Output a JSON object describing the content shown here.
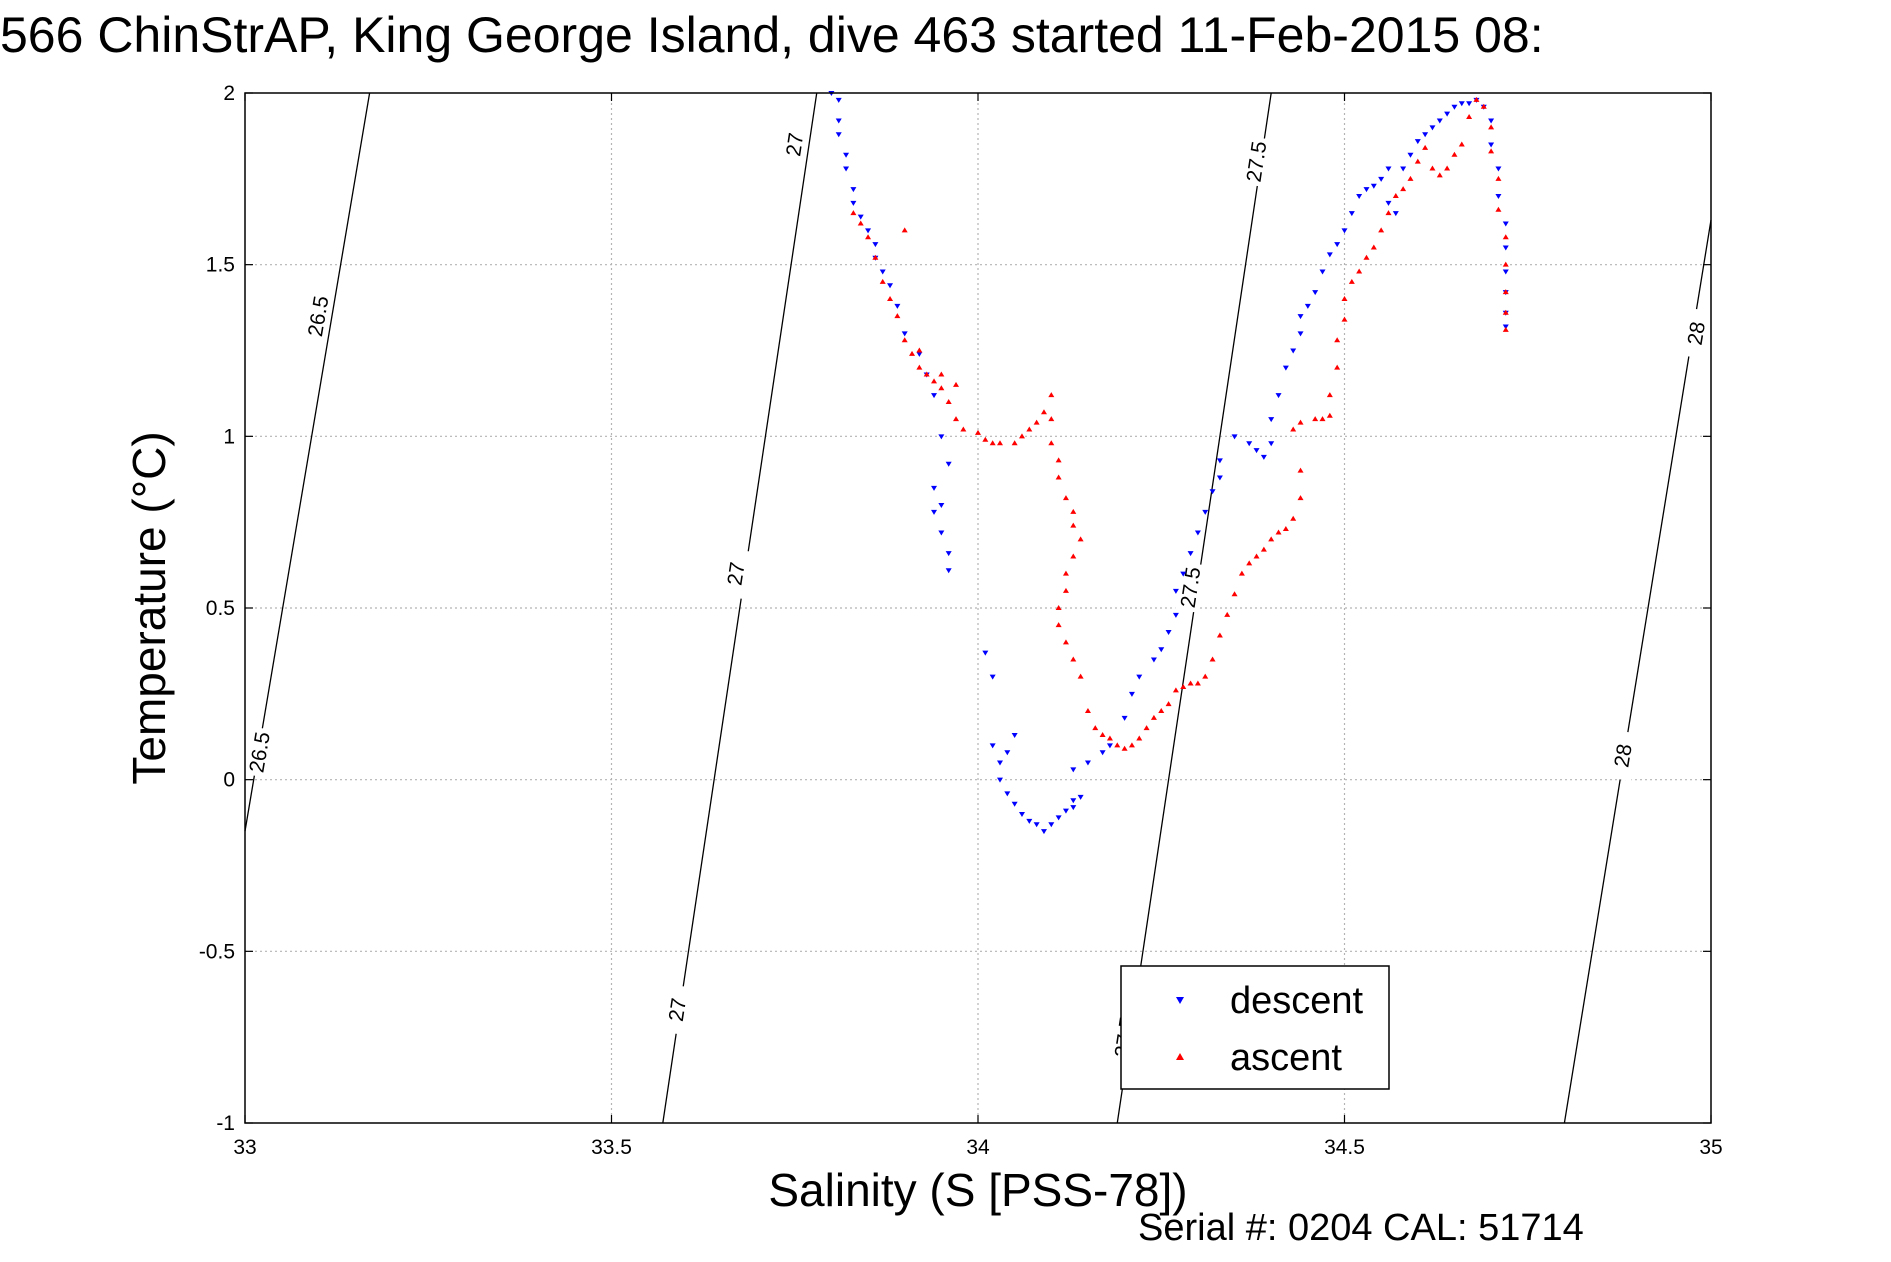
{
  "title": "566 ChinStrAP, King George Island, dive 463 started 11-Feb-2015 08:",
  "footer": {
    "serial": "Serial #: 0204  CAL: 51714"
  },
  "chart_data": {
    "type": "scatter",
    "title": "566 ChinStrAP, King George Island, dive 463 started 11-Feb-2015 08:",
    "xlabel": "Salinity (S [PSS-78])",
    "ylabel": "Temperature (°C)",
    "xlim": [
      33,
      35
    ],
    "ylim": [
      -1,
      2
    ],
    "xticks": [
      33,
      33.5,
      34,
      34.5,
      35
    ],
    "xtick_labels": [
      "33",
      "33.5",
      "34",
      "34.5",
      "35"
    ],
    "yticks": [
      -1,
      -0.5,
      0,
      0.5,
      1,
      1.5,
      2
    ],
    "ytick_labels": [
      "-1",
      "-0.5",
      "0",
      "0.5",
      "1",
      "1.5",
      "2"
    ],
    "grid": true,
    "legend_position": "bottom-right",
    "colors": {
      "descent": "#0000ff",
      "ascent": "#ff0000",
      "contour": "#000000",
      "grid": "#b4b4b4"
    },
    "density_contours": [
      {
        "label": "26.5",
        "line": [
          [
            33,
            -0.15
          ],
          [
            33.17,
            2.0
          ]
        ],
        "labels_at": [
          [
            33.1,
            1.35
          ],
          [
            33.02,
            0.08
          ]
        ]
      },
      {
        "label": "27",
        "line": [
          [
            33.57,
            -1.0
          ],
          [
            33.78,
            2.0
          ]
        ],
        "labels_at": [
          [
            33.75,
            1.85
          ],
          [
            33.67,
            0.6
          ],
          [
            33.59,
            -0.67
          ]
        ]
      },
      {
        "label": "27.5",
        "line": [
          [
            34.19,
            -1.0
          ],
          [
            34.4,
            2.0
          ]
        ],
        "labels_at": [
          [
            34.38,
            1.8
          ],
          [
            34.29,
            0.56
          ],
          [
            34.2,
            -0.75
          ]
        ]
      },
      {
        "label": "28",
        "line": [
          [
            34.8,
            -1.0
          ],
          [
            35.0,
            1.63
          ]
        ],
        "labels_at": [
          [
            34.98,
            1.3
          ],
          [
            34.88,
            0.07
          ]
        ]
      }
    ],
    "series": [
      {
        "name": "descent",
        "marker": "triangle-down",
        "points": [
          [
            33.8,
            2.0
          ],
          [
            33.81,
            1.98
          ],
          [
            33.81,
            1.92
          ],
          [
            33.81,
            1.88
          ],
          [
            33.82,
            1.82
          ],
          [
            33.82,
            1.78
          ],
          [
            33.83,
            1.72
          ],
          [
            33.83,
            1.68
          ],
          [
            33.84,
            1.64
          ],
          [
            33.85,
            1.6
          ],
          [
            33.86,
            1.56
          ],
          [
            33.86,
            1.52
          ],
          [
            33.87,
            1.48
          ],
          [
            33.88,
            1.44
          ],
          [
            33.89,
            1.38
          ],
          [
            33.9,
            1.3
          ],
          [
            33.92,
            1.24
          ],
          [
            33.93,
            1.18
          ],
          [
            33.94,
            1.12
          ],
          [
            33.95,
            1.0
          ],
          [
            33.96,
            0.92
          ],
          [
            33.94,
            0.85
          ],
          [
            33.95,
            0.8
          ],
          [
            33.94,
            0.78
          ],
          [
            33.95,
            0.72
          ],
          [
            33.96,
            0.66
          ],
          [
            33.96,
            0.61
          ],
          [
            34.01,
            0.37
          ],
          [
            34.02,
            0.3
          ],
          [
            34.02,
            0.1
          ],
          [
            34.03,
            0.05
          ],
          [
            34.04,
            0.08
          ],
          [
            34.05,
            0.13
          ],
          [
            34.03,
            0.0
          ],
          [
            34.04,
            -0.04
          ],
          [
            34.05,
            -0.07
          ],
          [
            34.06,
            -0.1
          ],
          [
            34.07,
            -0.12
          ],
          [
            34.08,
            -0.13
          ],
          [
            34.09,
            -0.15
          ],
          [
            34.1,
            -0.13
          ],
          [
            34.11,
            -0.11
          ],
          [
            34.12,
            -0.09
          ],
          [
            34.13,
            -0.08
          ],
          [
            34.13,
            -0.06
          ],
          [
            34.14,
            -0.05
          ],
          [
            34.13,
            0.03
          ],
          [
            34.15,
            0.05
          ],
          [
            34.17,
            0.08
          ],
          [
            34.18,
            0.1
          ],
          [
            34.2,
            0.18
          ],
          [
            34.21,
            0.25
          ],
          [
            34.22,
            0.3
          ],
          [
            34.24,
            0.35
          ],
          [
            34.25,
            0.38
          ],
          [
            34.26,
            0.43
          ],
          [
            34.27,
            0.48
          ],
          [
            34.27,
            0.55
          ],
          [
            34.28,
            0.6
          ],
          [
            34.29,
            0.66
          ],
          [
            34.3,
            0.72
          ],
          [
            34.31,
            0.78
          ],
          [
            34.32,
            0.84
          ],
          [
            34.33,
            0.88
          ],
          [
            34.33,
            0.93
          ],
          [
            34.35,
            1.0
          ],
          [
            34.37,
            0.98
          ],
          [
            34.38,
            0.96
          ],
          [
            34.39,
            0.94
          ],
          [
            34.4,
            0.98
          ],
          [
            34.4,
            1.05
          ],
          [
            34.41,
            1.12
          ],
          [
            34.42,
            1.2
          ],
          [
            34.43,
            1.25
          ],
          [
            34.44,
            1.3
          ],
          [
            34.44,
            1.35
          ],
          [
            34.45,
            1.38
          ],
          [
            34.46,
            1.42
          ],
          [
            34.47,
            1.48
          ],
          [
            34.48,
            1.53
          ],
          [
            34.49,
            1.56
          ],
          [
            34.5,
            1.6
          ],
          [
            34.51,
            1.65
          ],
          [
            34.52,
            1.7
          ],
          [
            34.53,
            1.72
          ],
          [
            34.54,
            1.73
          ],
          [
            34.55,
            1.75
          ],
          [
            34.56,
            1.78
          ],
          [
            34.56,
            1.68
          ],
          [
            34.57,
            1.65
          ],
          [
            34.58,
            1.78
          ],
          [
            34.59,
            1.82
          ],
          [
            34.6,
            1.86
          ],
          [
            34.61,
            1.88
          ],
          [
            34.62,
            1.9
          ],
          [
            34.63,
            1.92
          ],
          [
            34.64,
            1.94
          ],
          [
            34.65,
            1.96
          ],
          [
            34.66,
            1.97
          ],
          [
            34.67,
            1.97
          ],
          [
            34.68,
            1.98
          ],
          [
            34.69,
            1.96
          ],
          [
            34.7,
            1.92
          ],
          [
            34.7,
            1.85
          ],
          [
            34.71,
            1.78
          ],
          [
            34.71,
            1.7
          ],
          [
            34.72,
            1.62
          ],
          [
            34.72,
            1.55
          ],
          [
            34.72,
            1.48
          ],
          [
            34.72,
            1.42
          ],
          [
            34.72,
            1.36
          ],
          [
            34.72,
            1.32
          ]
        ]
      },
      {
        "name": "ascent",
        "marker": "triangle-up",
        "points": [
          [
            33.83,
            1.65
          ],
          [
            33.84,
            1.62
          ],
          [
            33.85,
            1.58
          ],
          [
            33.86,
            1.52
          ],
          [
            33.87,
            1.45
          ],
          [
            33.88,
            1.4
          ],
          [
            33.89,
            1.35
          ],
          [
            33.9,
            1.28
          ],
          [
            33.91,
            1.24
          ],
          [
            33.92,
            1.25
          ],
          [
            33.92,
            1.2
          ],
          [
            33.93,
            1.18
          ],
          [
            33.94,
            1.16
          ],
          [
            33.95,
            1.14
          ],
          [
            33.95,
            1.18
          ],
          [
            33.96,
            1.1
          ],
          [
            33.97,
            1.05
          ],
          [
            33.98,
            1.02
          ],
          [
            33.97,
            1.15
          ],
          [
            33.9,
            1.6
          ],
          [
            34.0,
            1.01
          ],
          [
            34.01,
            0.99
          ],
          [
            34.02,
            0.98
          ],
          [
            34.03,
            0.98
          ],
          [
            34.05,
            0.98
          ],
          [
            34.06,
            1.0
          ],
          [
            34.07,
            1.02
          ],
          [
            34.08,
            1.04
          ],
          [
            34.09,
            1.07
          ],
          [
            34.1,
            1.12
          ],
          [
            34.1,
            1.05
          ],
          [
            34.1,
            0.98
          ],
          [
            34.11,
            0.93
          ],
          [
            34.11,
            0.88
          ],
          [
            34.12,
            0.82
          ],
          [
            34.13,
            0.78
          ],
          [
            34.13,
            0.74
          ],
          [
            34.14,
            0.7
          ],
          [
            34.13,
            0.65
          ],
          [
            34.12,
            0.6
          ],
          [
            34.12,
            0.55
          ],
          [
            34.11,
            0.5
          ],
          [
            34.11,
            0.45
          ],
          [
            34.12,
            0.4
          ],
          [
            34.13,
            0.35
          ],
          [
            34.14,
            0.3
          ],
          [
            34.15,
            0.2
          ],
          [
            34.16,
            0.15
          ],
          [
            34.17,
            0.13
          ],
          [
            34.18,
            0.12
          ],
          [
            34.19,
            0.1
          ],
          [
            34.2,
            0.09
          ],
          [
            34.21,
            0.1
          ],
          [
            34.22,
            0.12
          ],
          [
            34.23,
            0.15
          ],
          [
            34.24,
            0.18
          ],
          [
            34.25,
            0.2
          ],
          [
            34.26,
            0.22
          ],
          [
            34.27,
            0.26
          ],
          [
            34.28,
            0.27
          ],
          [
            34.29,
            0.28
          ],
          [
            34.3,
            0.28
          ],
          [
            34.31,
            0.3
          ],
          [
            34.32,
            0.35
          ],
          [
            34.33,
            0.42
          ],
          [
            34.34,
            0.48
          ],
          [
            34.35,
            0.54
          ],
          [
            34.36,
            0.6
          ],
          [
            34.37,
            0.63
          ],
          [
            34.38,
            0.65
          ],
          [
            34.39,
            0.67
          ],
          [
            34.4,
            0.7
          ],
          [
            34.41,
            0.72
          ],
          [
            34.42,
            0.73
          ],
          [
            34.43,
            0.76
          ],
          [
            34.44,
            0.82
          ],
          [
            34.44,
            0.9
          ],
          [
            34.43,
            1.02
          ],
          [
            34.44,
            1.04
          ],
          [
            34.46,
            1.05
          ],
          [
            34.47,
            1.05
          ],
          [
            34.48,
            1.06
          ],
          [
            34.48,
            1.12
          ],
          [
            34.49,
            1.2
          ],
          [
            34.49,
            1.28
          ],
          [
            34.5,
            1.34
          ],
          [
            34.5,
            1.4
          ],
          [
            34.51,
            1.45
          ],
          [
            34.52,
            1.48
          ],
          [
            34.53,
            1.52
          ],
          [
            34.54,
            1.55
          ],
          [
            34.55,
            1.6
          ],
          [
            34.56,
            1.65
          ],
          [
            34.57,
            1.7
          ],
          [
            34.58,
            1.72
          ],
          [
            34.59,
            1.75
          ],
          [
            34.6,
            1.8
          ],
          [
            34.61,
            1.84
          ],
          [
            34.62,
            1.78
          ],
          [
            34.63,
            1.76
          ],
          [
            34.64,
            1.78
          ],
          [
            34.65,
            1.82
          ],
          [
            34.66,
            1.85
          ],
          [
            34.67,
            1.93
          ],
          [
            34.68,
            1.98
          ],
          [
            34.69,
            1.96
          ],
          [
            34.7,
            1.9
          ],
          [
            34.7,
            1.83
          ],
          [
            34.71,
            1.75
          ],
          [
            34.71,
            1.66
          ],
          [
            34.72,
            1.58
          ],
          [
            34.72,
            1.5
          ],
          [
            34.72,
            1.42
          ],
          [
            34.72,
            1.36
          ],
          [
            34.72,
            1.31
          ]
        ]
      }
    ]
  }
}
